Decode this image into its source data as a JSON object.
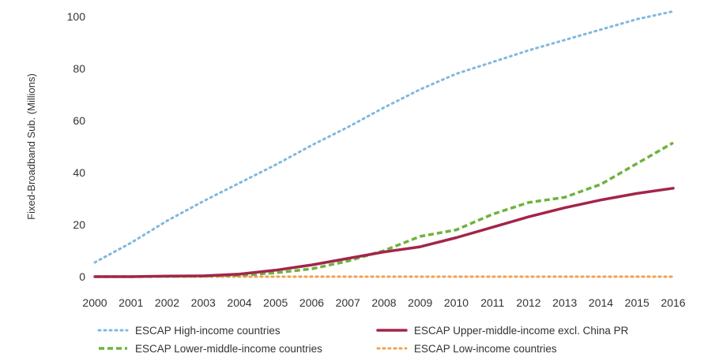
{
  "chart_data": {
    "type": "line",
    "title": "",
    "xlabel": "",
    "ylabel": "Fixed-Broadband Sub. (Millions)",
    "x": [
      "2000",
      "2001",
      "2002",
      "2003",
      "2004",
      "2005",
      "2006",
      "2007",
      "2008",
      "2009",
      "2010",
      "2011",
      "2012",
      "2013",
      "2014",
      "2015",
      "2016"
    ],
    "ylim": [
      0,
      100
    ],
    "yticks": [
      0,
      20,
      40,
      60,
      80,
      100
    ],
    "grid": false,
    "legend_position": "bottom",
    "series": [
      {
        "name": "ESCAP High-income countries",
        "color": "#7fb8e0",
        "style": "dotted",
        "values": [
          5.5,
          13,
          21.5,
          29,
          36,
          43,
          50.5,
          57.5,
          65,
          72,
          78,
          82.5,
          87,
          91,
          95,
          99,
          102
        ]
      },
      {
        "name": "ESCAP Upper-middle-income excl. China PR",
        "color": "#a3254a",
        "style": "solid",
        "values": [
          0,
          0,
          0.2,
          0.3,
          1,
          2.5,
          4.5,
          7,
          9.5,
          11.5,
          15,
          19,
          23,
          26.5,
          29.5,
          32,
          34
        ]
      },
      {
        "name": "ESCAP Lower-middle-income countries",
        "color": "#6db33f",
        "style": "dashed",
        "values": [
          0,
          0,
          0.1,
          0.2,
          0.5,
          1.5,
          3,
          6,
          10,
          15.5,
          18,
          24,
          28.5,
          30.5,
          35.5,
          43.5,
          51.5
        ]
      },
      {
        "name": "ESCAP Low-income countries",
        "color": "#f2a14a",
        "style": "dotted",
        "values": [
          0,
          0,
          0,
          0,
          0,
          0,
          0,
          0,
          0,
          0,
          0,
          0,
          0,
          0,
          0,
          0,
          0
        ]
      }
    ]
  }
}
